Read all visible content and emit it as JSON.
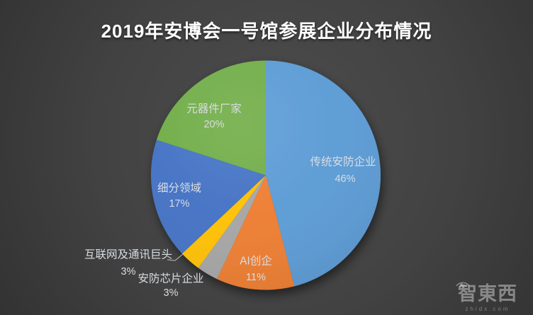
{
  "title": "2019年安博会一号馆参展企业分布情况",
  "chart_data": {
    "type": "pie",
    "title": "2019年安博会一号馆参展企业分布情况",
    "start_angle_deg": 0,
    "direction": "clockwise",
    "legend": "none",
    "label_color": "#D9DDE2",
    "slices": [
      {
        "label": "传统安防企业",
        "value": 46,
        "pct_label": "46%",
        "color": "#5B9BD5",
        "label_position": "inside"
      },
      {
        "label": "AI创企",
        "value": 11,
        "pct_label": "11%",
        "color": "#ED7D31",
        "label_position": "inside"
      },
      {
        "label": "安防芯片企业",
        "value": 3,
        "pct_label": "3%",
        "color": "#A5A5A5",
        "label_position": "outside"
      },
      {
        "label": "互联网及通讯巨头",
        "value": 3,
        "pct_label": "3%",
        "color": "#FFC000",
        "label_position": "outside-with-leader"
      },
      {
        "label": "细分领域",
        "value": 17,
        "pct_label": "17%",
        "color": "#4472C4",
        "label_position": "inside"
      },
      {
        "label": "元器件厂家",
        "value": 20,
        "pct_label": "20%",
        "color": "#70AD47",
        "label_position": "inside"
      }
    ]
  },
  "watermark": {
    "logo": "智東西",
    "domain": "zhidx.com"
  },
  "colors": {
    "background_center": "#4d4d4d",
    "background_edge": "#222222",
    "title_color": "#FFFFFF",
    "leader_line": "#A6A6A6"
  }
}
